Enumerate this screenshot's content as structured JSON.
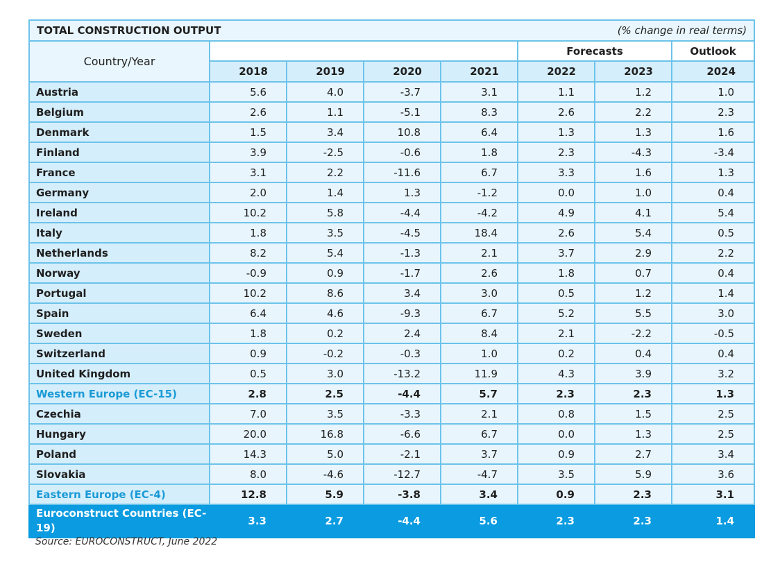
{
  "chart_data": {
    "type": "table",
    "title": "TOTAL CONSTRUCTION OUTPUT",
    "note": "(% change in real terms)",
    "corner_label": "Country/Year",
    "group_labels": {
      "forecasts": "Forecasts",
      "outlook": "Outlook"
    },
    "columns": [
      "2018",
      "2019",
      "2020",
      "2021",
      "2022",
      "2023",
      "2024"
    ],
    "rows": [
      {
        "country": "Austria",
        "values": [
          "5.6",
          "4.0",
          "-3.7",
          "3.1",
          "1.1",
          "1.2",
          "1.0"
        ]
      },
      {
        "country": "Belgium",
        "values": [
          "2.6",
          "1.1",
          "-5.1",
          "8.3",
          "2.6",
          "2.2",
          "2.3"
        ]
      },
      {
        "country": "Denmark",
        "values": [
          "1.5",
          "3.4",
          "10.8",
          "6.4",
          "1.3",
          "1.3",
          "1.6"
        ]
      },
      {
        "country": "Finland",
        "values": [
          "3.9",
          "-2.5",
          "-0.6",
          "1.8",
          "2.3",
          "-4.3",
          "-3.4"
        ]
      },
      {
        "country": "France",
        "values": [
          "3.1",
          "2.2",
          "-11.6",
          "6.7",
          "3.3",
          "1.6",
          "1.3"
        ]
      },
      {
        "country": "Germany",
        "values": [
          "2.0",
          "1.4",
          "1.3",
          "-1.2",
          "0.0",
          "1.0",
          "0.4"
        ]
      },
      {
        "country": "Ireland",
        "values": [
          "10.2",
          "5.8",
          "-4.4",
          "-4.2",
          "4.9",
          "4.1",
          "5.4"
        ]
      },
      {
        "country": "Italy",
        "values": [
          "1.8",
          "3.5",
          "-4.5",
          "18.4",
          "2.6",
          "5.4",
          "0.5"
        ]
      },
      {
        "country": "Netherlands",
        "values": [
          "8.2",
          "5.4",
          "-1.3",
          "2.1",
          "3.7",
          "2.9",
          "2.2"
        ]
      },
      {
        "country": "Norway",
        "values": [
          "-0.9",
          "0.9",
          "-1.7",
          "2.6",
          "1.8",
          "0.7",
          "0.4"
        ]
      },
      {
        "country": "Portugal",
        "values": [
          "10.2",
          "8.6",
          "3.4",
          "3.0",
          "0.5",
          "1.2",
          "1.4"
        ]
      },
      {
        "country": "Spain",
        "values": [
          "6.4",
          "4.6",
          "-9.3",
          "6.7",
          "5.2",
          "5.5",
          "3.0"
        ]
      },
      {
        "country": "Sweden",
        "values": [
          "1.8",
          "0.2",
          "2.4",
          "8.4",
          "2.1",
          "-2.2",
          "-0.5"
        ]
      },
      {
        "country": "Switzerland",
        "values": [
          "0.9",
          "-0.2",
          "-0.3",
          "1.0",
          "0.2",
          "0.4",
          "0.4"
        ]
      },
      {
        "country": "United Kingdom",
        "values": [
          "0.5",
          "3.0",
          "-13.2",
          "11.9",
          "4.3",
          "3.9",
          "3.2"
        ]
      },
      {
        "country": "Western Europe (EC-15)",
        "kind": "agg",
        "values": [
          "2.8",
          "2.5",
          "-4.4",
          "5.7",
          "2.3",
          "2.3",
          "1.3"
        ]
      },
      {
        "country": "Czechia",
        "values": [
          "7.0",
          "3.5",
          "-3.3",
          "2.1",
          "0.8",
          "1.5",
          "2.5"
        ]
      },
      {
        "country": "Hungary",
        "values": [
          "20.0",
          "16.8",
          "-6.6",
          "6.7",
          "0.0",
          "1.3",
          "2.5"
        ]
      },
      {
        "country": "Poland",
        "values": [
          "14.3",
          "5.0",
          "-2.1",
          "3.7",
          "0.9",
          "2.7",
          "3.4"
        ]
      },
      {
        "country": "Slovakia",
        "values": [
          "8.0",
          "-4.6",
          "-12.7",
          "-4.7",
          "3.5",
          "5.9",
          "3.6"
        ]
      },
      {
        "country": "Eastern Europe (EC-4)",
        "kind": "agg",
        "values": [
          "12.8",
          "5.9",
          "-3.8",
          "3.4",
          "0.9",
          "2.3",
          "3.1"
        ]
      },
      {
        "country": "Euroconstruct Countries (EC-19)",
        "kind": "total",
        "values": [
          "3.3",
          "2.7",
          "-4.4",
          "5.6",
          "2.3",
          "2.3",
          "1.4"
        ]
      }
    ],
    "source": "Source: EUROCONSTRUCT, June 2022"
  }
}
